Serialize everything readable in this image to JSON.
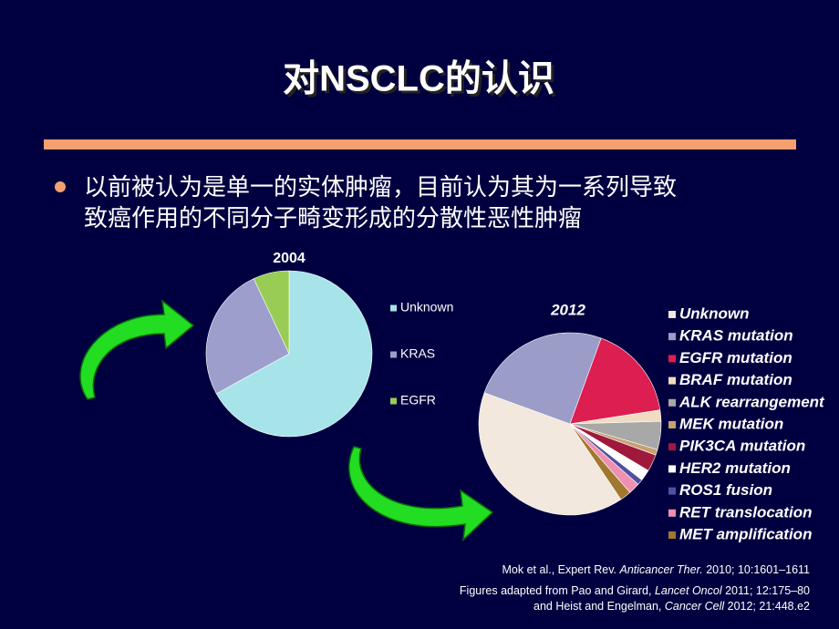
{
  "title": "对NSCLC的认识",
  "bullet": [
    "以前被认为是单一的实体肿瘤，目前认为其为一系列导致",
    "致癌作用的不同分子畸变形成的分散性恶性肿瘤"
  ],
  "chart_data": [
    {
      "type": "pie",
      "title": "2004",
      "series": [
        {
          "name": "Unknown",
          "color": "#a6e4ea",
          "values": [
            67
          ]
        },
        {
          "name": "KRAS",
          "color": "#9e9ecc",
          "values": [
            26
          ]
        },
        {
          "name": "EGFR",
          "color": "#99cc55",
          "values": [
            7
          ]
        }
      ]
    },
    {
      "type": "pie",
      "title": "2012",
      "series": [
        {
          "name": "Unknown",
          "color": "#f2e8de",
          "values": [
            40
          ]
        },
        {
          "name": "KRAS mutation",
          "color": "#9c9cc8",
          "values": [
            25
          ]
        },
        {
          "name": "EGFR mutation",
          "color": "#dc1e50",
          "values": [
            17
          ]
        },
        {
          "name": "BRAF mutation",
          "color": "#f0dcc0",
          "values": [
            2
          ]
        },
        {
          "name": "ALK rearrangement",
          "color": "#a8a8a8",
          "values": [
            5
          ]
        },
        {
          "name": "MEK mutation",
          "color": "#c8a070",
          "values": [
            1
          ]
        },
        {
          "name": "PIK3CA mutation",
          "color": "#a0183c",
          "values": [
            3
          ]
        },
        {
          "name": "HER2 mutation",
          "color": "#ffffff",
          "values": [
            2
          ]
        },
        {
          "name": "ROS1 fusion",
          "color": "#5050a0",
          "values": [
            1
          ]
        },
        {
          "name": "RET translocation",
          "color": "#f090b0",
          "values": [
            2
          ]
        },
        {
          "name": "MET amplification",
          "color": "#a07830",
          "values": [
            2
          ]
        }
      ]
    }
  ],
  "citations": [
    [
      "Mok et al., Expert Rev. ",
      "Anticancer Ther.",
      " 2010; 10:1601–1611"
    ],
    [
      "Figures adapted from Pao and Girard, ",
      "Lancet Oncol",
      " 2011; 12:175–80"
    ],
    [
      "and Heist and Engelman, ",
      "Cancer Cell",
      " 2012; 21:448.e2"
    ]
  ]
}
